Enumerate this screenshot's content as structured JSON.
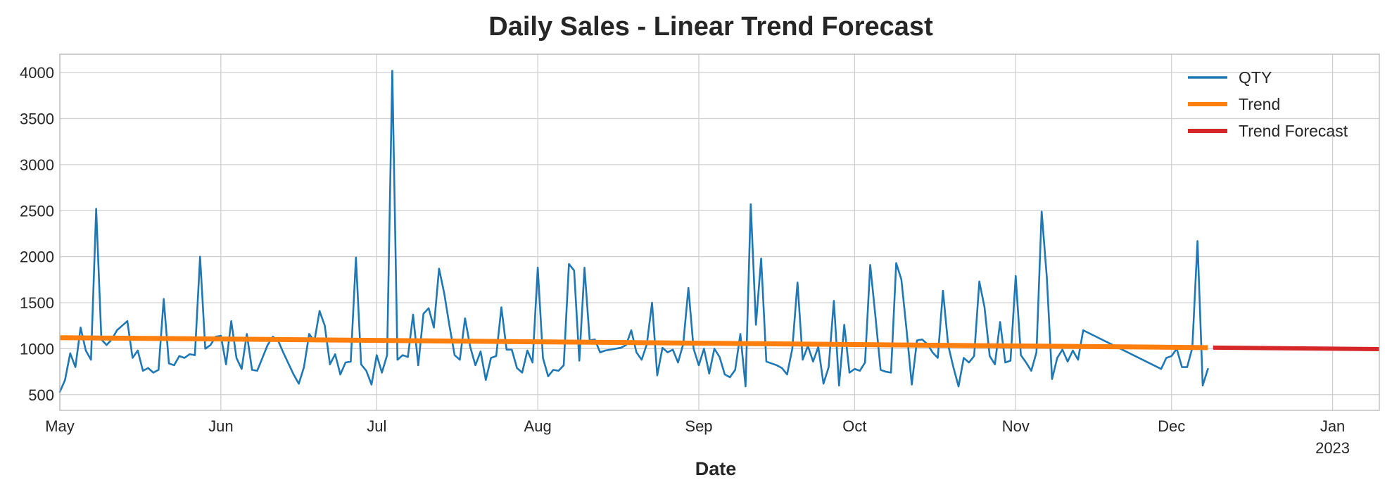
{
  "chart_data": {
    "type": "line",
    "title": "Daily Sales - Linear Trend Forecast",
    "xlabel": "Date",
    "ylabel": "",
    "x_range": [
      "2022-05-01",
      "2023-01-10"
    ],
    "ylim": [
      330,
      4200
    ],
    "yticks": [
      500,
      1000,
      1500,
      2000,
      2500,
      3000,
      3500,
      4000
    ],
    "xticks": [
      {
        "date": "2022-05-01",
        "label": "May",
        "sublabel": ""
      },
      {
        "date": "2022-06-01",
        "label": "Jun",
        "sublabel": ""
      },
      {
        "date": "2022-07-01",
        "label": "Jul",
        "sublabel": ""
      },
      {
        "date": "2022-08-01",
        "label": "Aug",
        "sublabel": ""
      },
      {
        "date": "2022-09-01",
        "label": "Sep",
        "sublabel": ""
      },
      {
        "date": "2022-10-01",
        "label": "Oct",
        "sublabel": ""
      },
      {
        "date": "2022-11-01",
        "label": "Nov",
        "sublabel": ""
      },
      {
        "date": "2022-12-01",
        "label": "Dec",
        "sublabel": ""
      },
      {
        "date": "2023-01-01",
        "label": "Jan",
        "sublabel": "2023"
      }
    ],
    "grid": true,
    "legend_position": "top-right",
    "series": [
      {
        "name": "QTY",
        "color": "#1f77b4",
        "points": [
          [
            "2022-05-01",
            530
          ],
          [
            "2022-05-02",
            660
          ],
          [
            "2022-05-03",
            950
          ],
          [
            "2022-05-04",
            800
          ],
          [
            "2022-05-05",
            1230
          ],
          [
            "2022-05-06",
            980
          ],
          [
            "2022-05-07",
            880
          ],
          [
            "2022-05-08",
            2520
          ],
          [
            "2022-05-09",
            1100
          ],
          [
            "2022-05-10",
            1040
          ],
          [
            "2022-05-11",
            1100
          ],
          [
            "2022-05-12",
            1200
          ],
          [
            "2022-05-13",
            1250
          ],
          [
            "2022-05-14",
            1300
          ],
          [
            "2022-05-15",
            900
          ],
          [
            "2022-05-16",
            980
          ],
          [
            "2022-05-17",
            760
          ],
          [
            "2022-05-18",
            790
          ],
          [
            "2022-05-19",
            740
          ],
          [
            "2022-05-20",
            770
          ],
          [
            "2022-05-21",
            1540
          ],
          [
            "2022-05-22",
            840
          ],
          [
            "2022-05-23",
            820
          ],
          [
            "2022-05-24",
            920
          ],
          [
            "2022-05-25",
            900
          ],
          [
            "2022-05-26",
            940
          ],
          [
            "2022-05-27",
            930
          ],
          [
            "2022-05-28",
            2000
          ],
          [
            "2022-05-29",
            1000
          ],
          [
            "2022-05-30",
            1040
          ],
          [
            "2022-05-31",
            1130
          ],
          [
            "2022-06-01",
            1140
          ],
          [
            "2022-06-02",
            830
          ],
          [
            "2022-06-03",
            1300
          ],
          [
            "2022-06-04",
            900
          ],
          [
            "2022-06-05",
            780
          ],
          [
            "2022-06-06",
            1160
          ],
          [
            "2022-06-07",
            770
          ],
          [
            "2022-06-08",
            760
          ],
          [
            "2022-06-09",
            900
          ],
          [
            "2022-06-10",
            1040
          ],
          [
            "2022-06-11",
            1130
          ],
          [
            "2022-06-12",
            1090
          ],
          [
            "2022-06-13",
            960
          ],
          [
            "2022-06-14",
            840
          ],
          [
            "2022-06-15",
            720
          ],
          [
            "2022-06-16",
            620
          ],
          [
            "2022-06-17",
            800
          ],
          [
            "2022-06-18",
            1160
          ],
          [
            "2022-06-19",
            1080
          ],
          [
            "2022-06-20",
            1410
          ],
          [
            "2022-06-21",
            1250
          ],
          [
            "2022-06-22",
            830
          ],
          [
            "2022-06-23",
            940
          ],
          [
            "2022-06-24",
            720
          ],
          [
            "2022-06-25",
            850
          ],
          [
            "2022-06-26",
            860
          ],
          [
            "2022-06-27",
            1990
          ],
          [
            "2022-06-28",
            830
          ],
          [
            "2022-06-29",
            760
          ],
          [
            "2022-06-30",
            610
          ],
          [
            "2022-07-01",
            930
          ],
          [
            "2022-07-02",
            740
          ],
          [
            "2022-07-03",
            930
          ],
          [
            "2022-07-04",
            4020
          ],
          [
            "2022-07-05",
            880
          ],
          [
            "2022-07-06",
            930
          ],
          [
            "2022-07-07",
            910
          ],
          [
            "2022-07-08",
            1370
          ],
          [
            "2022-07-09",
            820
          ],
          [
            "2022-07-10",
            1380
          ],
          [
            "2022-07-11",
            1440
          ],
          [
            "2022-07-12",
            1230
          ],
          [
            "2022-07-13",
            1870
          ],
          [
            "2022-07-14",
            1600
          ],
          [
            "2022-07-15",
            1250
          ],
          [
            "2022-07-16",
            930
          ],
          [
            "2022-07-17",
            880
          ],
          [
            "2022-07-18",
            1330
          ],
          [
            "2022-07-19",
            1020
          ],
          [
            "2022-07-20",
            820
          ],
          [
            "2022-07-21",
            970
          ],
          [
            "2022-07-22",
            660
          ],
          [
            "2022-07-23",
            900
          ],
          [
            "2022-07-24",
            920
          ],
          [
            "2022-07-25",
            1450
          ],
          [
            "2022-07-26",
            990
          ],
          [
            "2022-07-27",
            990
          ],
          [
            "2022-07-28",
            790
          ],
          [
            "2022-07-29",
            740
          ],
          [
            "2022-07-30",
            980
          ],
          [
            "2022-07-31",
            850
          ],
          [
            "2022-08-01",
            1880
          ],
          [
            "2022-08-02",
            900
          ],
          [
            "2022-08-03",
            700
          ],
          [
            "2022-08-04",
            770
          ],
          [
            "2022-08-05",
            760
          ],
          [
            "2022-08-06",
            820
          ],
          [
            "2022-08-07",
            1920
          ],
          [
            "2022-08-08",
            1850
          ],
          [
            "2022-08-09",
            870
          ],
          [
            "2022-08-10",
            1880
          ],
          [
            "2022-08-11",
            1090
          ],
          [
            "2022-08-12",
            1100
          ],
          [
            "2022-08-13",
            960
          ],
          [
            "2022-08-14",
            980
          ],
          [
            "2022-08-15",
            990
          ],
          [
            "2022-08-16",
            1000
          ],
          [
            "2022-08-17",
            1010
          ],
          [
            "2022-08-18",
            1040
          ],
          [
            "2022-08-19",
            1200
          ],
          [
            "2022-08-20",
            960
          ],
          [
            "2022-08-21",
            880
          ],
          [
            "2022-08-22",
            1050
          ],
          [
            "2022-08-23",
            1500
          ],
          [
            "2022-08-24",
            710
          ],
          [
            "2022-08-25",
            1010
          ],
          [
            "2022-08-26",
            960
          ],
          [
            "2022-08-27",
            990
          ],
          [
            "2022-08-28",
            850
          ],
          [
            "2022-08-29",
            1050
          ],
          [
            "2022-08-30",
            1660
          ],
          [
            "2022-08-31",
            1000
          ],
          [
            "2022-09-01",
            820
          ],
          [
            "2022-09-02",
            1000
          ],
          [
            "2022-09-03",
            730
          ],
          [
            "2022-09-04",
            1000
          ],
          [
            "2022-09-05",
            910
          ],
          [
            "2022-09-06",
            720
          ],
          [
            "2022-09-07",
            690
          ],
          [
            "2022-09-08",
            770
          ],
          [
            "2022-09-09",
            1160
          ],
          [
            "2022-09-10",
            590
          ],
          [
            "2022-09-11",
            2570
          ],
          [
            "2022-09-12",
            1260
          ],
          [
            "2022-09-13",
            1980
          ],
          [
            "2022-09-14",
            860
          ],
          [
            "2022-09-15",
            840
          ],
          [
            "2022-09-16",
            820
          ],
          [
            "2022-09-17",
            790
          ],
          [
            "2022-09-18",
            720
          ],
          [
            "2022-09-19",
            1000
          ],
          [
            "2022-09-20",
            1720
          ],
          [
            "2022-09-21",
            880
          ],
          [
            "2022-09-22",
            1030
          ],
          [
            "2022-09-23",
            860
          ],
          [
            "2022-09-24",
            1020
          ],
          [
            "2022-09-25",
            620
          ],
          [
            "2022-09-26",
            800
          ],
          [
            "2022-09-27",
            1520
          ],
          [
            "2022-09-28",
            600
          ],
          [
            "2022-09-29",
            1260
          ],
          [
            "2022-09-30",
            740
          ],
          [
            "2022-10-01",
            780
          ],
          [
            "2022-10-02",
            760
          ],
          [
            "2022-10-03",
            850
          ],
          [
            "2022-10-04",
            1910
          ],
          [
            "2022-10-05",
            1350
          ],
          [
            "2022-10-06",
            770
          ],
          [
            "2022-10-07",
            750
          ],
          [
            "2022-10-08",
            740
          ],
          [
            "2022-10-09",
            1930
          ],
          [
            "2022-10-10",
            1750
          ],
          [
            "2022-10-11",
            1200
          ],
          [
            "2022-10-12",
            610
          ],
          [
            "2022-10-13",
            1090
          ],
          [
            "2022-10-14",
            1100
          ],
          [
            "2022-10-15",
            1050
          ],
          [
            "2022-10-16",
            960
          ],
          [
            "2022-10-17",
            900
          ],
          [
            "2022-10-18",
            1630
          ],
          [
            "2022-10-19",
            1040
          ],
          [
            "2022-10-20",
            800
          ],
          [
            "2022-10-21",
            590
          ],
          [
            "2022-10-22",
            900
          ],
          [
            "2022-10-23",
            850
          ],
          [
            "2022-10-24",
            920
          ],
          [
            "2022-10-25",
            1730
          ],
          [
            "2022-10-26",
            1450
          ],
          [
            "2022-10-27",
            920
          ],
          [
            "2022-10-28",
            830
          ],
          [
            "2022-10-29",
            1290
          ],
          [
            "2022-10-30",
            850
          ],
          [
            "2022-10-31",
            870
          ],
          [
            "2022-11-01",
            1790
          ],
          [
            "2022-11-02",
            930
          ],
          [
            "2022-11-03",
            850
          ],
          [
            "2022-11-04",
            760
          ],
          [
            "2022-11-05",
            960
          ],
          [
            "2022-11-06",
            2490
          ],
          [
            "2022-11-07",
            1770
          ],
          [
            "2022-11-08",
            670
          ],
          [
            "2022-11-09",
            900
          ],
          [
            "2022-11-10",
            990
          ],
          [
            "2022-11-11",
            860
          ],
          [
            "2022-11-12",
            980
          ],
          [
            "2022-11-13",
            880
          ],
          [
            "2022-11-14",
            1200
          ],
          [
            "2022-11-29",
            780
          ],
          [
            "2022-11-30",
            900
          ],
          [
            "2022-12-01",
            920
          ],
          [
            "2022-12-02",
            1000
          ],
          [
            "2022-12-03",
            800
          ],
          [
            "2022-12-04",
            800
          ],
          [
            "2022-12-05",
            1010
          ],
          [
            "2022-12-06",
            2170
          ],
          [
            "2022-12-07",
            600
          ],
          [
            "2022-12-08",
            780
          ]
        ]
      },
      {
        "name": "Trend",
        "color": "#ff7f0e",
        "points": [
          [
            "2022-05-01",
            1120
          ],
          [
            "2022-12-08",
            1012
          ]
        ]
      },
      {
        "name": "Trend Forecast",
        "color": "#d62728",
        "points": [
          [
            "2022-12-09",
            1012
          ],
          [
            "2023-01-10",
            995
          ]
        ]
      }
    ]
  }
}
